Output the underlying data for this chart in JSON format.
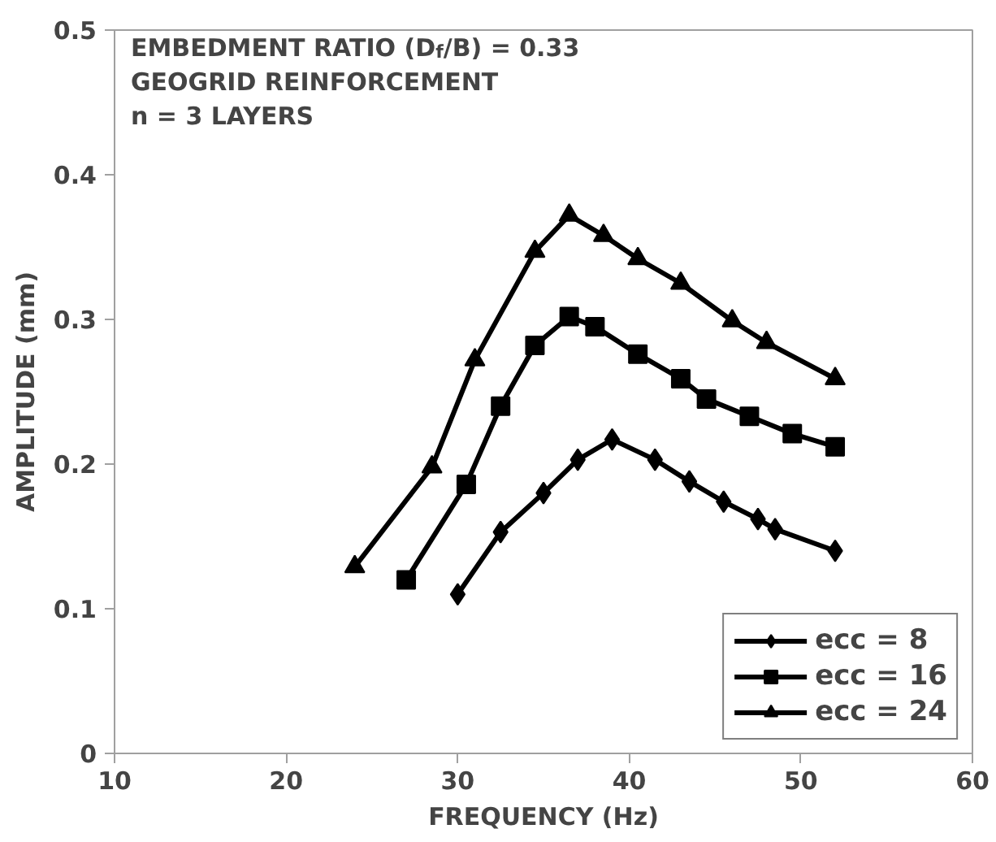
{
  "chart_data": {
    "type": "line",
    "xlabel": "FREQUENCY (Hz)",
    "ylabel": "AMPLITUDE (mm)",
    "annotations": [
      "EMBEDMENT RATIO (D$_{f}$/B) = 0.33",
      "GEOGRID REINFORCEMENT",
      "n = 3 LAYERS"
    ],
    "xlim": [
      10,
      60
    ],
    "xticks": [
      10,
      20,
      30,
      40,
      50,
      60
    ],
    "ylim": [
      0,
      0.5
    ],
    "yticks": [
      0,
      0.1,
      0.2,
      0.3,
      0.4,
      0.5
    ],
    "grid": false,
    "legend": "bottom right",
    "line_style": "solid",
    "series": [
      {
        "name": "ecc = 8",
        "color": "#000000",
        "marker": "diamond",
        "x": [
          30,
          32.5,
          35,
          37,
          39,
          41.5,
          43.5,
          45.5,
          47.5,
          48.5,
          52
        ],
        "values": [
          0.11,
          0.153,
          0.18,
          0.203,
          0.217,
          0.203,
          0.188,
          0.174,
          0.162,
          0.155,
          0.14
        ]
      },
      {
        "name": "ecc = 16",
        "color": "#000000",
        "marker": "square",
        "x": [
          27,
          30.5,
          32.5,
          34.5,
          36.5,
          38,
          40.5,
          43,
          44.5,
          47,
          49.5,
          52
        ],
        "values": [
          0.12,
          0.186,
          0.24,
          0.282,
          0.302,
          0.295,
          0.276,
          0.259,
          0.245,
          0.233,
          0.221,
          0.212
        ]
      },
      {
        "name": "ecc = 24",
        "color": "#000000",
        "marker": "triangle",
        "x": [
          24,
          28.5,
          31,
          34.5,
          36.5,
          38.5,
          40.5,
          43,
          46,
          48,
          52
        ],
        "values": [
          0.129,
          0.198,
          0.272,
          0.347,
          0.372,
          0.358,
          0.342,
          0.325,
          0.299,
          0.284,
          0.259
        ]
      }
    ]
  }
}
